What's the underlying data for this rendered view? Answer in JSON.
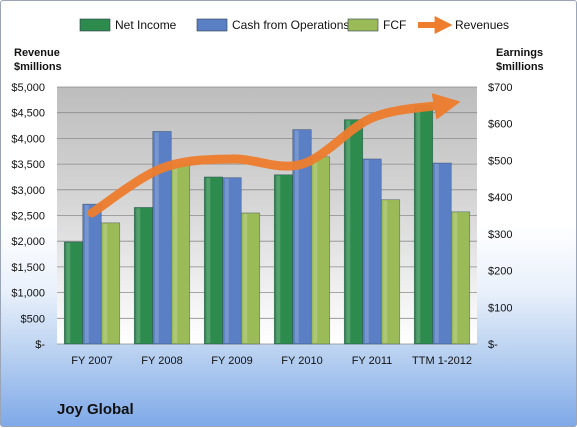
{
  "chart_data": {
    "type": "bar",
    "title": "Joy Global",
    "categories": [
      "FY 2007",
      "FY 2008",
      "FY 2009",
      "FY 2010",
      "FY 2011",
      "TTM 1-2012"
    ],
    "series": [
      {
        "name": "Net Income",
        "axis": "right",
        "color": "#2e8b4e",
        "values": [
          278,
          372,
          455,
          461,
          611,
          650
        ]
      },
      {
        "name": "Cash from Operations",
        "axis": "right",
        "color": "#5a7fc4",
        "values": [
          381,
          579,
          453,
          584,
          504,
          493
        ]
      },
      {
        "name": "FCF",
        "axis": "right",
        "color": "#9bbb59",
        "values": [
          330,
          490,
          357,
          510,
          393,
          360
        ]
      },
      {
        "name": "Revenues",
        "axis": "left",
        "type": "line",
        "color": "#ee7d2e",
        "values": [
          2550,
          3420,
          3600,
          3500,
          4400,
          4650
        ]
      }
    ],
    "y_left": {
      "label_line1": "Revenue",
      "label_line2": "$millions",
      "min": 0,
      "max": 5000,
      "step": 500,
      "ticks": [
        "$-",
        "$500",
        "$1,000",
        "$1,500",
        "$2,000",
        "$2,500",
        "$3,000",
        "$3,500",
        "$4,000",
        "$4,500",
        "$5,000"
      ]
    },
    "y_right": {
      "label_line1": "Earnings",
      "label_line2": "$millions",
      "min": 0,
      "max": 700,
      "step": 100,
      "ticks": [
        "$-",
        "$100",
        "$200",
        "$300",
        "$400",
        "$500",
        "$600",
        "$700"
      ]
    },
    "legend_position": "top",
    "grid": true
  }
}
